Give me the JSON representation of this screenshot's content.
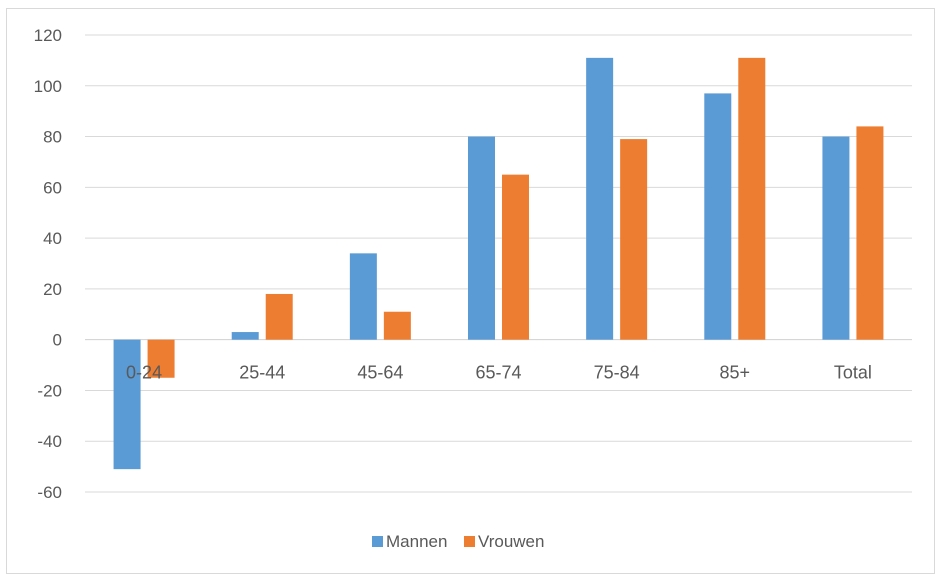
{
  "chart_data": {
    "type": "bar",
    "title": "",
    "xlabel": "",
    "ylabel": "",
    "categories": [
      "0-24",
      "25-44",
      "45-64",
      "65-74",
      "75-84",
      "85+",
      "Total"
    ],
    "series": [
      {
        "name": "Mannen",
        "color": "#5b9bd5",
        "values": [
          -51,
          3,
          34,
          80,
          111,
          97,
          80
        ]
      },
      {
        "name": "Vrouwen",
        "color": "#ed7d31",
        "values": [
          -15,
          18,
          11,
          65,
          79,
          111,
          84
        ]
      }
    ],
    "ylim": [
      -60,
      120
    ],
    "yticks": [
      -60,
      -40,
      -20,
      0,
      20,
      40,
      60,
      80,
      100,
      120
    ],
    "grid": true,
    "legend": "bottom-center"
  }
}
